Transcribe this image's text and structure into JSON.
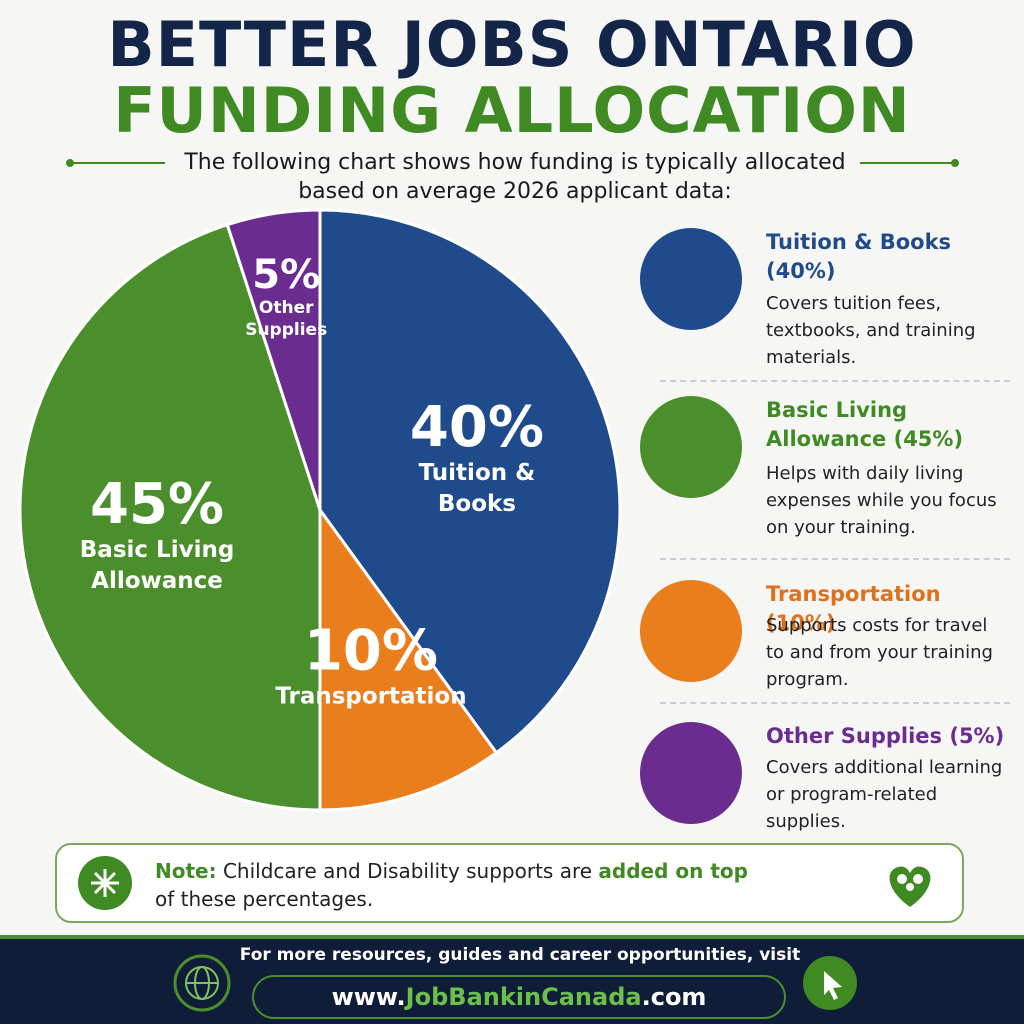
{
  "header": {
    "title_line1": "BETTER JOBS ONTARIO",
    "title_line2": "FUNDING ALLOCATION",
    "subtitle": "The following chart shows how funding is typically allocated based on average 2026 applicant data:"
  },
  "chart_data": {
    "type": "pie",
    "categories": [
      "Tuition & Books",
      "Transportation",
      "Basic Living Allowance",
      "Other Supplies"
    ],
    "values": [
      40,
      10,
      45,
      5
    ],
    "value_labels": [
      "40%",
      "10%",
      "45%",
      "5%"
    ],
    "colors": [
      "#1f4b8c",
      "#ea7d1c",
      "#4a8f2c",
      "#6a2d8f"
    ]
  },
  "sidebar": [
    {
      "title": "Tuition & Books (40%)",
      "text": "Covers tuition fees, textbooks, and training materials."
    },
    {
      "title": "Basic Living Allowance (45%)",
      "text": "Helps with daily living expenses while you focus on your training."
    },
    {
      "title": "Transportation (10%)",
      "text": "Supports costs for travel to and from your training program."
    },
    {
      "title": "Other Supplies (5%)",
      "text": "Covers additional learning or program-related supplies."
    }
  ],
  "note": {
    "label": "Note:",
    "text1": "Childcare and Disability supports are",
    "highlight": "added on top",
    "text2": "of these percentages."
  },
  "footer": {
    "text": "For more resources, guides and career opportunities, visit",
    "url_prefix": "www.",
    "url_name": "JobBankinCanada",
    "url_suffix": ".com"
  }
}
